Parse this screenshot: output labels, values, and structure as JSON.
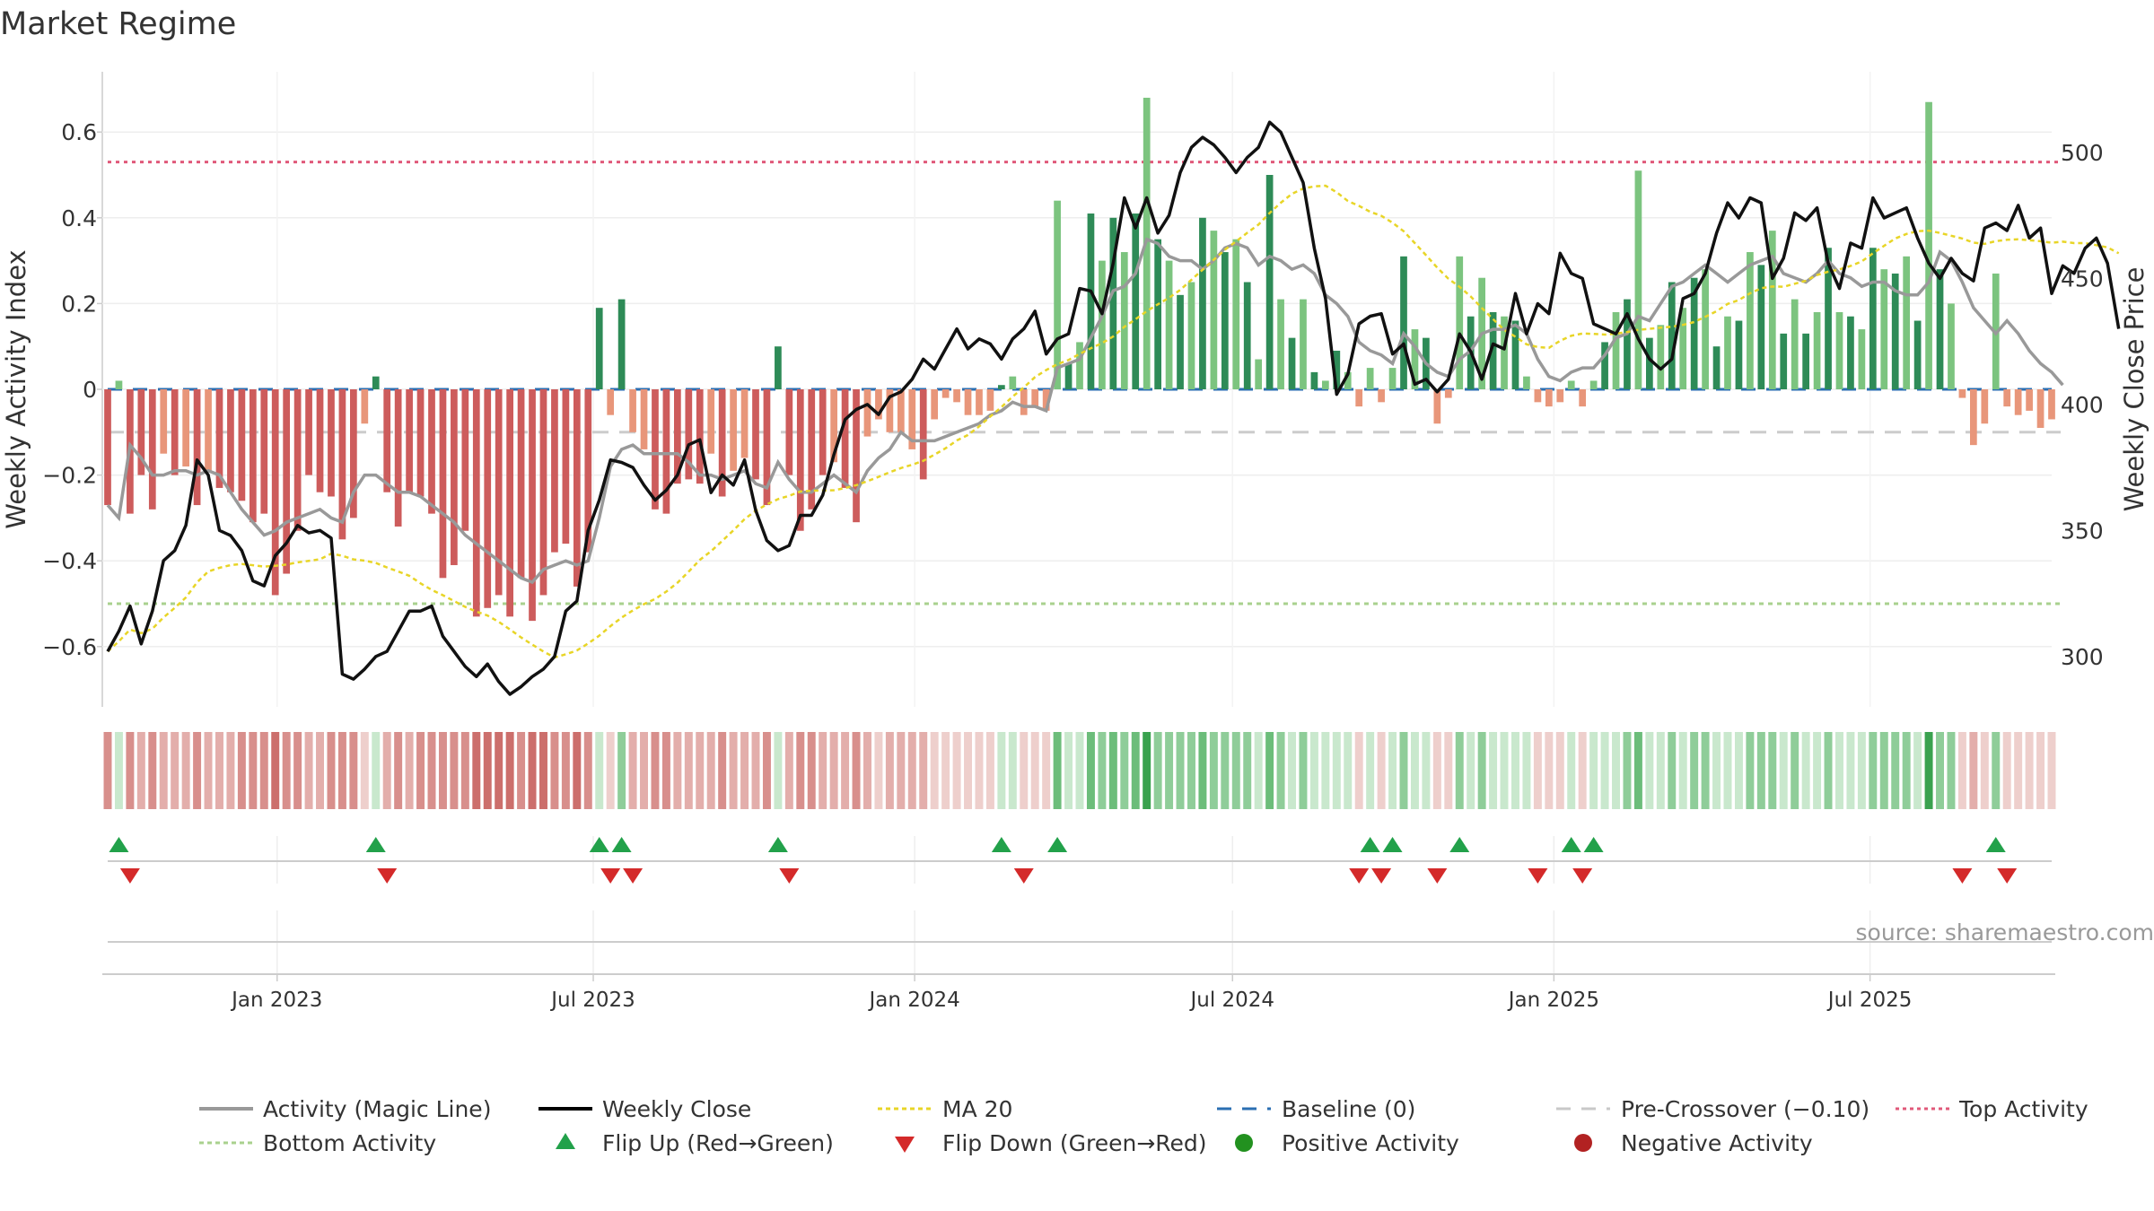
{
  "chart_data": {
    "type": "bar",
    "title": "Market Regime",
    "source": "source: sharemaestro.com",
    "ylabel": "Weekly Activity Index",
    "ylabel_right": "Weekly Close Price",
    "ylim": [
      -0.74,
      0.74
    ],
    "ylim_right": [
      280,
      532
    ],
    "yticks": [
      -0.6,
      -0.4,
      -0.2,
      0,
      0.2,
      0.4,
      0.6
    ],
    "ytick_labels": [
      "−0.6",
      "−0.4",
      "−0.2",
      "0",
      "0.2",
      "0.4",
      "0.6"
    ],
    "yticks_right": [
      300,
      350,
      400,
      450,
      500
    ],
    "ytick_labels_right": [
      "300",
      "350",
      "400",
      "450",
      "500"
    ],
    "x_start": "2022-09-26",
    "x_end": "2025-10-13",
    "xticks": [
      {
        "date": "2023-01-01",
        "label": "Jan 2023"
      },
      {
        "date": "2023-07-01",
        "label": "Jul 2023"
      },
      {
        "date": "2024-01-01",
        "label": "Jan 2024"
      },
      {
        "date": "2024-07-01",
        "label": "Jul 2024"
      },
      {
        "date": "2025-01-01",
        "label": "Jan 2025"
      },
      {
        "date": "2025-07-01",
        "label": "Jul 2025"
      }
    ],
    "reference_lines": {
      "top": 0.53,
      "bottom": -0.5,
      "pre_crossover": -0.1,
      "baseline": 0
    },
    "activity": [
      -0.27,
      0.02,
      -0.29,
      -0.2,
      -0.28,
      -0.15,
      -0.2,
      -0.18,
      -0.27,
      -0.19,
      -0.23,
      -0.24,
      -0.26,
      -0.31,
      -0.29,
      -0.48,
      -0.43,
      -0.33,
      -0.2,
      -0.24,
      -0.25,
      -0.35,
      -0.3,
      -0.08,
      0.03,
      -0.24,
      -0.32,
      -0.24,
      -0.25,
      -0.29,
      -0.44,
      -0.41,
      -0.33,
      -0.53,
      -0.51,
      -0.48,
      -0.53,
      -0.44,
      -0.54,
      -0.48,
      -0.38,
      -0.36,
      -0.46,
      -0.38,
      0.19,
      -0.06,
      0.21,
      -0.1,
      -0.14,
      -0.28,
      -0.29,
      -0.22,
      -0.21,
      -0.22,
      -0.15,
      -0.25,
      -0.19,
      -0.16,
      -0.21,
      -0.27,
      0.1,
      -0.2,
      -0.33,
      -0.28,
      -0.2,
      -0.17,
      -0.23,
      -0.31,
      -0.11,
      -0.07,
      -0.1,
      -0.1,
      -0.14,
      -0.21,
      -0.07,
      -0.02,
      -0.03,
      -0.06,
      -0.06,
      -0.05,
      0.01,
      0.03,
      -0.06,
      -0.04,
      -0.05,
      0.44,
      0.06,
      0.11,
      0.41,
      0.3,
      0.4,
      0.32,
      0.41,
      0.68,
      0.35,
      0.3,
      0.22,
      0.25,
      0.4,
      0.37,
      0.32,
      0.35,
      0.25,
      0.07,
      0.5,
      0.21,
      0.12,
      0.21,
      0.04,
      0.02,
      0.09,
      0.04,
      -0.04,
      0.05,
      -0.03,
      0.05,
      0.31,
      0.14,
      0.12,
      -0.08,
      -0.02,
      0.31,
      0.17,
      0.26,
      0.18,
      0.17,
      0.16,
      0.03,
      -0.03,
      -0.04,
      -0.03,
      0.02,
      -0.04,
      0.02,
      0.11,
      0.18,
      0.21,
      0.51,
      0.12,
      0.15,
      0.25,
      0.19,
      0.26,
      0.28,
      0.1,
      0.17,
      0.16,
      0.32,
      0.29,
      0.37,
      0.13,
      0.21,
      0.13,
      0.18,
      0.33,
      0.18,
      0.17,
      0.14,
      0.33,
      0.28,
      0.27,
      0.31,
      0.16,
      0.67,
      0.28,
      0.2,
      -0.02,
      -0.13,
      -0.08,
      0.27,
      -0.04,
      -0.06,
      -0.05,
      -0.09,
      -0.07
    ],
    "magic_line": [
      -0.27,
      -0.3,
      -0.13,
      -0.16,
      -0.2,
      -0.2,
      -0.19,
      -0.19,
      -0.2,
      -0.19,
      -0.2,
      -0.24,
      -0.28,
      -0.31,
      -0.34,
      -0.33,
      -0.31,
      -0.3,
      -0.29,
      -0.28,
      -0.3,
      -0.31,
      -0.24,
      -0.2,
      -0.2,
      -0.22,
      -0.24,
      -0.24,
      -0.25,
      -0.27,
      -0.29,
      -0.31,
      -0.34,
      -0.36,
      -0.38,
      -0.4,
      -0.42,
      -0.44,
      -0.45,
      -0.42,
      -0.41,
      -0.4,
      -0.41,
      -0.4,
      -0.3,
      -0.18,
      -0.14,
      -0.13,
      -0.15,
      -0.15,
      -0.15,
      -0.15,
      -0.17,
      -0.2,
      -0.2,
      -0.21,
      -0.2,
      -0.19,
      -0.22,
      -0.23,
      -0.17,
      -0.21,
      -0.24,
      -0.24,
      -0.22,
      -0.2,
      -0.22,
      -0.24,
      -0.19,
      -0.16,
      -0.14,
      -0.1,
      -0.12,
      -0.12,
      -0.12,
      -0.11,
      -0.1,
      -0.09,
      -0.08,
      -0.06,
      -0.05,
      -0.03,
      -0.04,
      -0.04,
      -0.05,
      0.05,
      0.06,
      0.07,
      0.12,
      0.17,
      0.23,
      0.24,
      0.27,
      0.35,
      0.34,
      0.31,
      0.3,
      0.3,
      0.28,
      0.3,
      0.33,
      0.34,
      0.33,
      0.29,
      0.31,
      0.3,
      0.28,
      0.29,
      0.27,
      0.22,
      0.2,
      0.17,
      0.11,
      0.09,
      0.08,
      0.06,
      0.13,
      0.1,
      0.06,
      0.04,
      0.03,
      0.07,
      0.09,
      0.13,
      0.14,
      0.14,
      0.15,
      0.13,
      0.07,
      0.03,
      0.02,
      0.04,
      0.05,
      0.05,
      0.08,
      0.12,
      0.13,
      0.17,
      0.16,
      0.2,
      0.24,
      0.25,
      0.27,
      0.29,
      0.27,
      0.25,
      0.27,
      0.29,
      0.3,
      0.31,
      0.27,
      0.26,
      0.25,
      0.27,
      0.3,
      0.27,
      0.26,
      0.24,
      0.25,
      0.25,
      0.23,
      0.22,
      0.22,
      0.25,
      0.32,
      0.3,
      0.25,
      0.19,
      0.16,
      0.13,
      0.16,
      0.13,
      0.09,
      0.06,
      0.04,
      0.01
    ],
    "weekly_close": [
      302,
      310,
      320,
      305,
      318,
      338,
      342,
      352,
      378,
      372,
      350,
      348,
      342,
      330,
      328,
      340,
      345,
      352,
      349,
      350,
      347,
      293,
      291,
      295,
      300,
      302,
      310,
      318,
      318,
      320,
      308,
      302,
      296,
      292,
      297,
      290,
      285,
      288,
      292,
      295,
      300,
      318,
      322,
      350,
      362,
      378,
      377,
      375,
      368,
      362,
      366,
      372,
      384,
      386,
      365,
      372,
      368,
      378,
      358,
      346,
      342,
      344,
      356,
      356,
      364,
      380,
      394,
      398,
      400,
      396,
      403,
      405,
      410,
      418,
      414,
      422,
      430,
      422,
      426,
      424,
      418,
      426,
      430,
      437,
      420,
      426,
      428,
      446,
      445,
      436,
      456,
      482,
      470,
      482,
      468,
      475,
      492,
      502,
      506,
      503,
      498,
      492,
      498,
      502,
      512,
      508,
      498,
      488,
      462,
      442,
      404,
      412,
      432,
      435,
      436,
      420,
      424,
      408,
      410,
      405,
      410,
      428,
      421,
      410,
      424,
      422,
      444,
      428,
      440,
      436,
      460,
      452,
      450,
      432,
      430,
      428,
      436,
      426,
      418,
      414,
      418,
      442,
      444,
      452,
      468,
      480,
      474,
      482,
      480,
      450,
      458,
      476,
      473,
      478,
      456,
      446,
      464,
      462,
      482,
      474,
      476,
      478,
      466,
      456,
      450,
      458,
      452,
      449,
      470,
      472,
      469,
      479,
      466,
      470,
      444,
      455,
      452,
      462,
      466,
      456,
      430
    ]
  }
}
